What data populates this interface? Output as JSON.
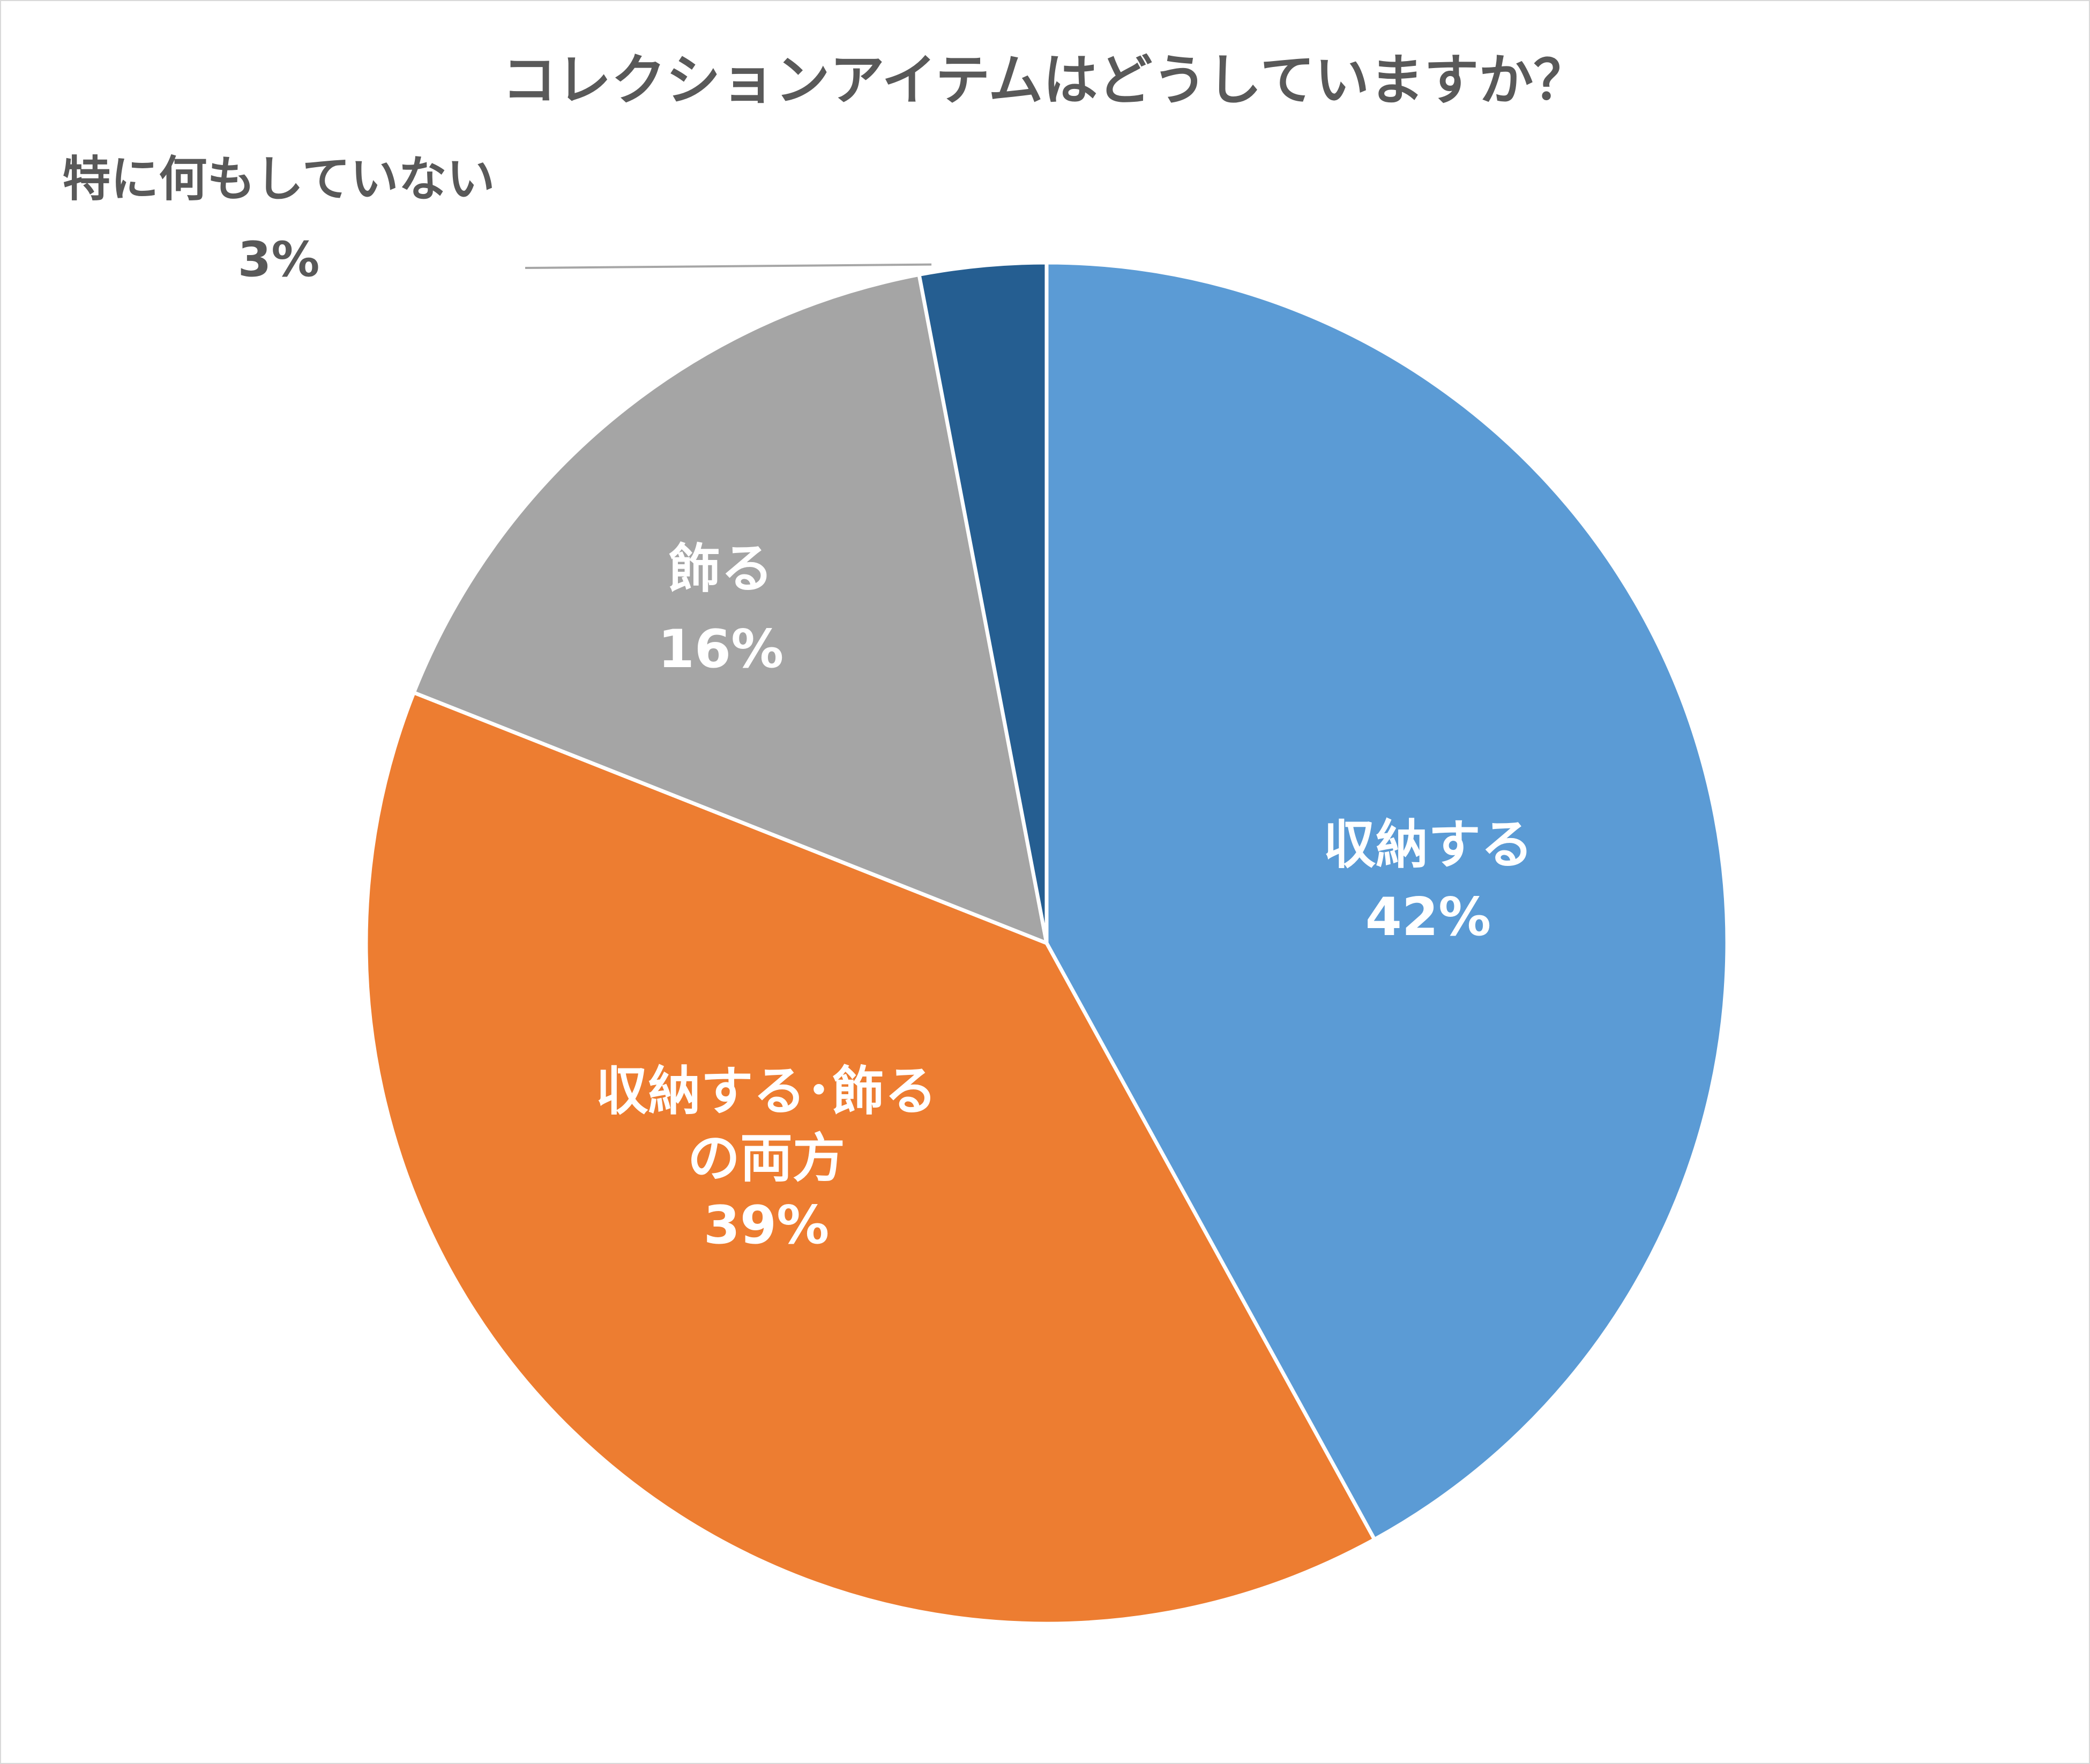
{
  "chart_data": {
    "type": "pie",
    "title": "コレクションアイテムはどうしていますか？",
    "slices": [
      {
        "label": "収納する",
        "value": 42,
        "value_label": "42%",
        "color": "#5b9bd5"
      },
      {
        "label": "収納する･飾る\nの両方",
        "value": 39,
        "value_label": "39%",
        "color": "#ed7d31"
      },
      {
        "label": "飾る",
        "value": 16,
        "value_label": "16%",
        "color": "#a5a5a5"
      },
      {
        "label": "特に何もしていない",
        "value": 3,
        "value_label": "3%",
        "color": "#255e91"
      }
    ],
    "start_angle": "12 o'clock",
    "direction": "clockwise",
    "legend": "none",
    "label_style": "category name and percentage on slice; smallest slice labeled outside with leader line"
  }
}
